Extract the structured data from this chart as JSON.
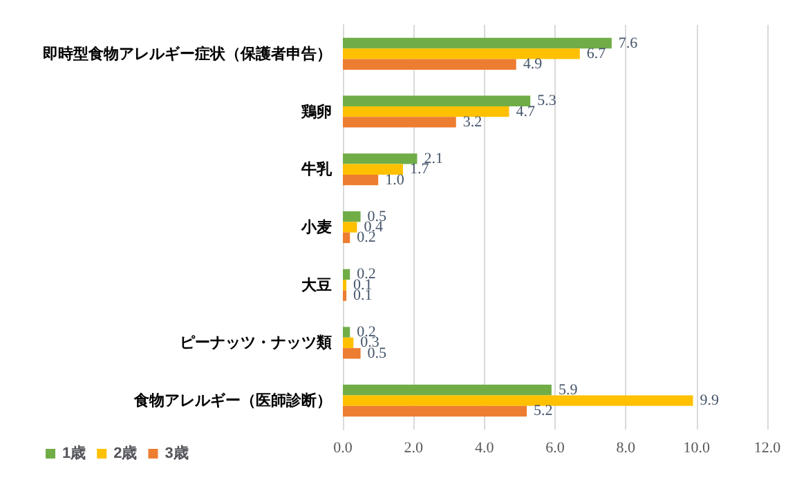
{
  "chart_data": {
    "type": "bar",
    "orientation": "horizontal",
    "categories": [
      "即時型食物アレルギー症状（保護者申告）",
      "鶏卵",
      "牛乳",
      "小麦",
      "大豆",
      "ピーナッツ・ナッツ類",
      "食物アレルギー（医師診断）"
    ],
    "series": [
      {
        "name": "1歳",
        "color": "#70ad47",
        "values": [
          7.6,
          5.3,
          2.1,
          0.5,
          0.2,
          0.2,
          5.9
        ],
        "value_labels": [
          "7.6",
          "5.3",
          "2.1",
          "0.5",
          "0.2",
          "0.2",
          "5.9"
        ]
      },
      {
        "name": "2歳",
        "color": "#ffc000",
        "values": [
          6.7,
          4.7,
          1.7,
          0.4,
          0.1,
          0.3,
          9.9
        ],
        "value_labels": [
          "6.7",
          "4.7",
          "1.7",
          "0.4",
          "0.1",
          "0.3",
          "9.9"
        ]
      },
      {
        "name": "3歳",
        "color": "#ed7d31",
        "values": [
          4.9,
          3.2,
          1.0,
          0.2,
          0.1,
          0.5,
          5.2
        ],
        "value_labels": [
          "4.9",
          "3.2",
          "1.0",
          "0.2",
          "0.1",
          "0.5",
          "5.2"
        ]
      }
    ],
    "xlim": [
      0,
      12
    ],
    "xticks": [
      {
        "value": 0,
        "label": "0.0"
      },
      {
        "value": 2,
        "label": "2.0"
      },
      {
        "value": 4,
        "label": "4.0"
      },
      {
        "value": 6,
        "label": "6.0"
      },
      {
        "value": 8,
        "label": "8.0"
      },
      {
        "value": 10,
        "label": "10.0"
      },
      {
        "value": 12,
        "label": "12.0"
      }
    ],
    "grid": "x",
    "legend": "bottom left"
  }
}
